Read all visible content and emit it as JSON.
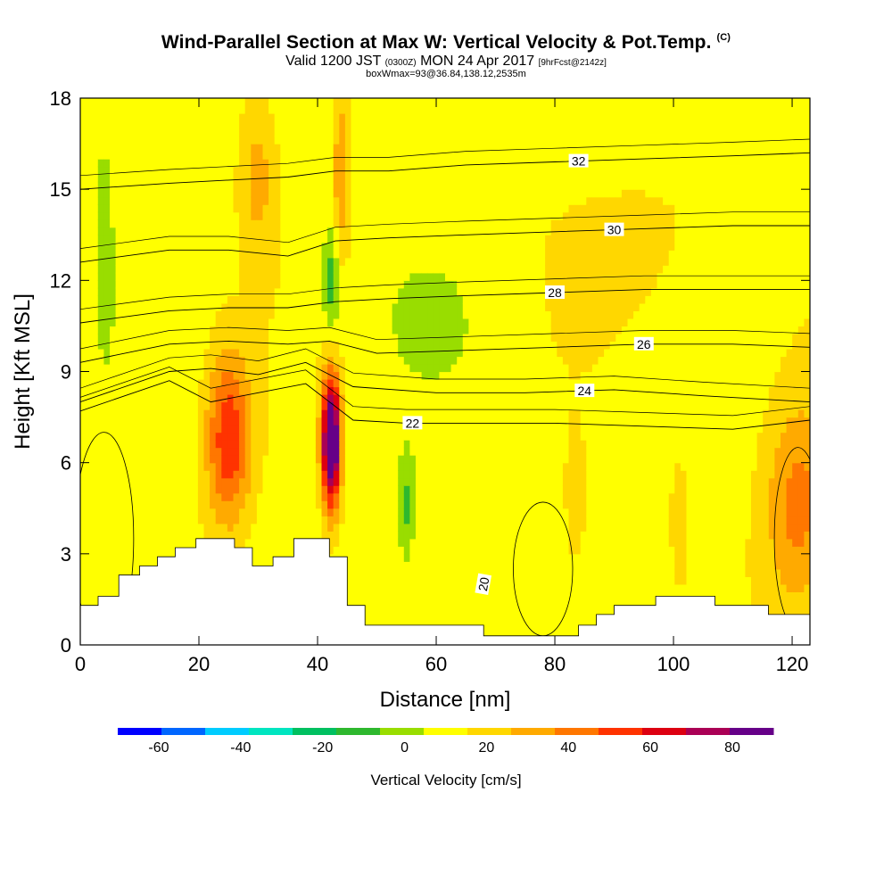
{
  "header": {
    "title": "Wind-Parallel Section at Max W: Vertical Velocity & Pot.Temp.",
    "copyright": "(C)",
    "valid_prefix": "Valid 1200 JST",
    "valid_utc": "(0300Z)",
    "valid_date": "MON 24 Apr 2017",
    "forecast": "[9hrFcst@2142z]",
    "box_info": "boxWmax=93@36.84,138.12,2535m"
  },
  "chart_data": {
    "type": "heatmap",
    "title": "Wind-Parallel Section at Max W: Vertical Velocity & Pot.Temp.",
    "xlabel": "Distance [nm]",
    "ylabel": "Height [Kft MSL]",
    "xlim": [
      0,
      123
    ],
    "ylim": [
      0,
      18
    ],
    "x_ticks": [
      0,
      20,
      40,
      60,
      80,
      100,
      120
    ],
    "y_ticks": [
      0,
      3,
      6,
      9,
      12,
      15,
      18
    ],
    "colorbar": {
      "label": "Vertical Velocity [cm/s]",
      "tick_labels": [
        "-60",
        "-40",
        "-20",
        "0",
        "20",
        "40",
        "60",
        "80"
      ],
      "tick_values": [
        -60,
        -40,
        -20,
        0,
        20,
        40,
        60,
        80
      ],
      "range": [
        -70,
        90
      ],
      "step": 10,
      "colors": [
        "#0000ff",
        "#0066ff",
        "#00ccff",
        "#00e5c0",
        "#00c060",
        "#2eb82e",
        "#99dd00",
        "#ffff00",
        "#ffd700",
        "#ffaa00",
        "#ff7700",
        "#ff3300",
        "#dd0011",
        "#aa0055",
        "#660088"
      ]
    },
    "terrain": [
      [
        0,
        1.3
      ],
      [
        3,
        1.3
      ],
      [
        3,
        1.6
      ],
      [
        6.5,
        1.6
      ],
      [
        6.5,
        2.3
      ],
      [
        10,
        2.3
      ],
      [
        10,
        2.6
      ],
      [
        13,
        2.6
      ],
      [
        13,
        2.9
      ],
      [
        16,
        2.9
      ],
      [
        16,
        3.2
      ],
      [
        19.5,
        3.2
      ],
      [
        19.5,
        3.5
      ],
      [
        26,
        3.5
      ],
      [
        26,
        3.2
      ],
      [
        29,
        3.2
      ],
      [
        29,
        2.6
      ],
      [
        32.5,
        2.6
      ],
      [
        32.5,
        2.9
      ],
      [
        36,
        2.9
      ],
      [
        36,
        3.5
      ],
      [
        42,
        3.5
      ],
      [
        42,
        2.9
      ],
      [
        45,
        2.9
      ],
      [
        45,
        1.3
      ],
      [
        48,
        1.3
      ],
      [
        48,
        0.65
      ],
      [
        68,
        0.65
      ],
      [
        68,
        0.3
      ],
      [
        84,
        0.3
      ],
      [
        84,
        0.65
      ],
      [
        87,
        0.65
      ],
      [
        87,
        1.0
      ],
      [
        90,
        1.0
      ],
      [
        90,
        1.3
      ],
      [
        97,
        1.3
      ],
      [
        97,
        1.6
      ],
      [
        107,
        1.6
      ],
      [
        107,
        1.3
      ],
      [
        116,
        1.3
      ],
      [
        116,
        1.0
      ],
      [
        123,
        1.0
      ]
    ],
    "w_centers": [
      {
        "x": 42.3,
        "y": 6.7,
        "peak": 93,
        "sx": 1.1,
        "sy": 1.5
      },
      {
        "x": 25,
        "y": 6.8,
        "peak": 42,
        "sx": 2.7,
        "sy": 2.0
      },
      {
        "x": 44,
        "y": 15.5,
        "peak": 24,
        "sx": 1.0,
        "sy": 2.0
      },
      {
        "x": 30,
        "y": 15.5,
        "peak": 18,
        "sx": 2.2,
        "sy": 2.0
      },
      {
        "x": 121,
        "y": 4.5,
        "peak": 28,
        "sx": 4.0,
        "sy": 2.5
      },
      {
        "x": 83.5,
        "y": 4.5,
        "peak": 12,
        "sx": 1.2,
        "sy": 1.5
      },
      {
        "x": 101,
        "y": 4.5,
        "peak": 10,
        "sx": 1.0,
        "sy": 1.3
      },
      {
        "x": 55,
        "y": 4.5,
        "peak": -18,
        "sx": 1.0,
        "sy": 1.3
      },
      {
        "x": 42.3,
        "y": 12.0,
        "peak": -22,
        "sx": 1.0,
        "sy": 1.3
      },
      {
        "x": 75,
        "y": 5.2,
        "peak": -6,
        "sx": 1.5,
        "sy": 1.6
      },
      {
        "x": 4,
        "y": 14,
        "peak": -8,
        "sx": 1.5,
        "sy": 4.0
      }
    ],
    "isentropes": [
      {
        "label": "22",
        "points": [
          [
            0,
            7.7
          ],
          [
            15,
            8.7
          ],
          [
            22,
            8.0
          ],
          [
            30,
            8.3
          ],
          [
            38,
            8.6
          ],
          [
            46,
            7.4
          ],
          [
            55,
            7.3
          ],
          [
            70,
            7.3
          ],
          [
            80,
            7.3
          ],
          [
            95,
            7.2
          ],
          [
            110,
            7.1
          ],
          [
            123,
            7.4
          ]
        ],
        "label_at": 56
      },
      {
        "label": "24",
        "points": [
          [
            0,
            8.0
          ],
          [
            15,
            9.0
          ],
          [
            22,
            9.1
          ],
          [
            30,
            8.9
          ],
          [
            38,
            9.3
          ],
          [
            46,
            8.5
          ],
          [
            60,
            8.3
          ],
          [
            75,
            8.3
          ],
          [
            90,
            8.4
          ],
          [
            105,
            8.2
          ],
          [
            123,
            8.0
          ]
        ],
        "label_at": 85
      },
      {
        "label": "26",
        "points": [
          [
            0,
            9.3
          ],
          [
            15,
            9.9
          ],
          [
            25,
            10.0
          ],
          [
            35,
            9.9
          ],
          [
            42,
            10.0
          ],
          [
            50,
            9.6
          ],
          [
            65,
            9.7
          ],
          [
            80,
            9.8
          ],
          [
            95,
            9.9
          ],
          [
            110,
            9.9
          ],
          [
            123,
            9.8
          ]
        ],
        "label_at": 95
      },
      {
        "label": "28",
        "points": [
          [
            0,
            10.6
          ],
          [
            15,
            11.0
          ],
          [
            25,
            11.1
          ],
          [
            35,
            11.1
          ],
          [
            43,
            11.3
          ],
          [
            52,
            11.4
          ],
          [
            65,
            11.5
          ],
          [
            80,
            11.6
          ],
          [
            95,
            11.7
          ],
          [
            110,
            11.7
          ],
          [
            123,
            11.7
          ]
        ],
        "label_at": 80
      },
      {
        "label": "30",
        "points": [
          [
            0,
            12.6
          ],
          [
            15,
            13.0
          ],
          [
            25,
            13.0
          ],
          [
            35,
            12.8
          ],
          [
            43,
            13.3
          ],
          [
            52,
            13.4
          ],
          [
            65,
            13.5
          ],
          [
            80,
            13.6
          ],
          [
            95,
            13.7
          ],
          [
            110,
            13.8
          ],
          [
            123,
            13.8
          ]
        ],
        "label_at": 90
      },
      {
        "label": "32",
        "points": [
          [
            0,
            15.0
          ],
          [
            15,
            15.2
          ],
          [
            25,
            15.3
          ],
          [
            35,
            15.4
          ],
          [
            43,
            15.6
          ],
          [
            52,
            15.6
          ],
          [
            65,
            15.8
          ],
          [
            80,
            15.9
          ],
          [
            95,
            16.0
          ],
          [
            110,
            16.1
          ],
          [
            123,
            16.2
          ]
        ],
        "label_at": 84
      }
    ],
    "low_contours": [
      {
        "label": "20",
        "center": [
          78,
          2.5
        ],
        "rx": 5,
        "ry": 2.2
      },
      {
        "label": "",
        "center": [
          4,
          3.5
        ],
        "rx": 5,
        "ry": 3.5
      },
      {
        "label": "",
        "center": [
          121,
          3.5
        ],
        "rx": 4,
        "ry": 3
      }
    ]
  }
}
